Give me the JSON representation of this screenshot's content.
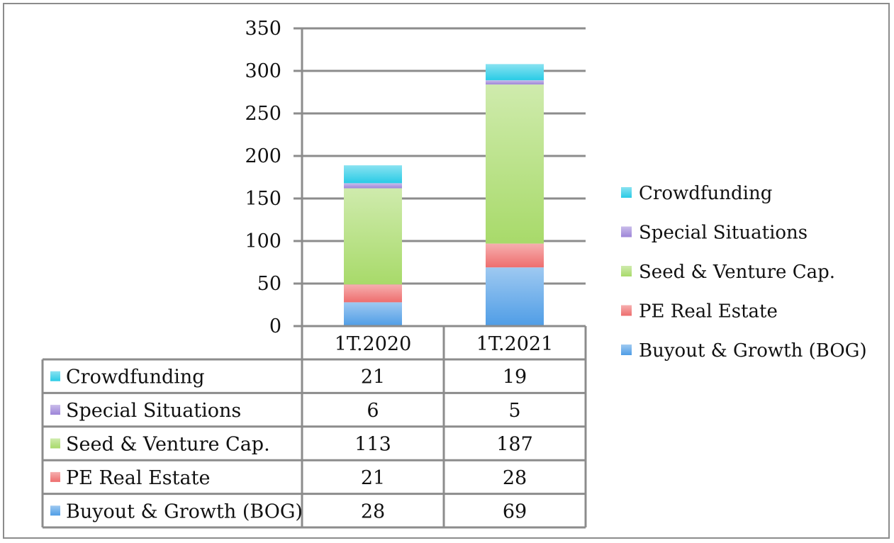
{
  "chart_data": {
    "type": "bar",
    "stacked": true,
    "categories": [
      "1T.2020",
      "1T.2021"
    ],
    "series": [
      {
        "name": "Buyout & Growth (BOG)",
        "values": [
          28,
          69
        ],
        "color": "#4f9de6"
      },
      {
        "name": "PE Real Estate",
        "values": [
          21,
          28
        ],
        "color": "#ee6e6e"
      },
      {
        "name": "Seed & Venture Cap.",
        "values": [
          113,
          187
        ],
        "color": "#a8da6a"
      },
      {
        "name": "Special Situations",
        "values": [
          6,
          5
        ],
        "color": "#9d85d8"
      },
      {
        "name": "Crowdfunding",
        "values": [
          21,
          19
        ],
        "color": "#29cbe6"
      }
    ],
    "title": "",
    "xlabel": "",
    "ylabel": "",
    "ylim": [
      0,
      350
    ],
    "yticks": [
      0,
      50,
      100,
      150,
      200,
      250,
      300,
      350
    ],
    "grid": true,
    "legend": "right",
    "data_table": true
  }
}
